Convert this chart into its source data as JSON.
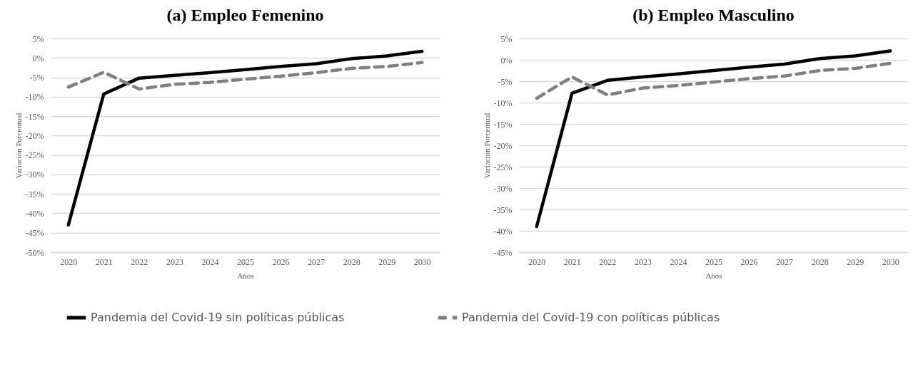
{
  "chart_data": [
    {
      "type": "line",
      "title": "(a) Empleo Femenino",
      "xlabel": "Años",
      "ylabel": "Variación Porcentual",
      "categories": [
        "2020",
        "2021",
        "2022",
        "2023",
        "2024",
        "2025",
        "2026",
        "2027",
        "2028",
        "2029",
        "2030"
      ],
      "series": [
        {
          "name": "Pandemia del Covid-19 sin políticas públicas",
          "color": "#000000",
          "line_style": "solid",
          "values": [
            -43,
            -9.3,
            -5.2,
            -4.5,
            -3.8,
            -3,
            -2.2,
            -1.5,
            -0.2,
            0.5,
            1.7
          ]
        },
        {
          "name": "Pandemia del Covid-19 con políticas públicas",
          "color": "#808080",
          "line_style": "dashed",
          "values": [
            -7.5,
            -3.7,
            -8,
            -6.8,
            -6.3,
            -5.5,
            -4.7,
            -3.8,
            -2.7,
            -2.2,
            -1.2
          ]
        }
      ],
      "ylim": [
        -50,
        5
      ],
      "yticks": [
        {
          "value": 5,
          "label": "5%"
        },
        {
          "value": 0,
          "label": "0%"
        },
        {
          "value": -5,
          "label": "-5%"
        },
        {
          "value": -10,
          "label": "-10%"
        },
        {
          "value": -15,
          "label": "-15%"
        },
        {
          "value": -20,
          "label": "-20%"
        },
        {
          "value": -25,
          "label": "-25%"
        },
        {
          "value": -30,
          "label": "-30%"
        },
        {
          "value": -35,
          "label": "-35%"
        },
        {
          "value": -40,
          "label": "-40%"
        },
        {
          "value": -45,
          "label": "-45%"
        },
        {
          "value": -50,
          "label": "-50%"
        }
      ],
      "grid": "y",
      "legend": "bottom",
      "marker": "none"
    },
    {
      "type": "line",
      "title": "(b) Empleo Masculino",
      "xlabel": "Años",
      "ylabel": "Variación Porcentual",
      "categories": [
        "2020",
        "2021",
        "2022",
        "2023",
        "2024",
        "2025",
        "2026",
        "2027",
        "2028",
        "2029",
        "2030"
      ],
      "series": [
        {
          "name": "Pandemia del Covid-19 sin políticas públicas",
          "color": "#000000",
          "line_style": "solid",
          "values": [
            -39,
            -7.8,
            -4.8,
            -4,
            -3.3,
            -2.5,
            -1.7,
            -1,
            0.3,
            0.9,
            2.1
          ]
        },
        {
          "name": "Pandemia del Covid-19 con políticas públicas",
          "color": "#808080",
          "line_style": "dashed",
          "values": [
            -9,
            -4,
            -8.2,
            -6.6,
            -6,
            -5.2,
            -4.4,
            -3.8,
            -2.5,
            -2,
            -0.8
          ]
        }
      ],
      "ylim": [
        -45,
        5
      ],
      "yticks": [
        {
          "value": 5,
          "label": "5%"
        },
        {
          "value": 0,
          "label": "0%"
        },
        {
          "value": -5,
          "label": "-5%"
        },
        {
          "value": -10,
          "label": "-10%"
        },
        {
          "value": -15,
          "label": "-15%"
        },
        {
          "value": -20,
          "label": "-20%"
        },
        {
          "value": -25,
          "label": "-25%"
        },
        {
          "value": -30,
          "label": "-30%"
        },
        {
          "value": -35,
          "label": "-35%"
        },
        {
          "value": -40,
          "label": "-40%"
        },
        {
          "value": -45,
          "label": "-45%"
        }
      ],
      "grid": "y",
      "legend": "bottom",
      "marker": "none"
    }
  ]
}
